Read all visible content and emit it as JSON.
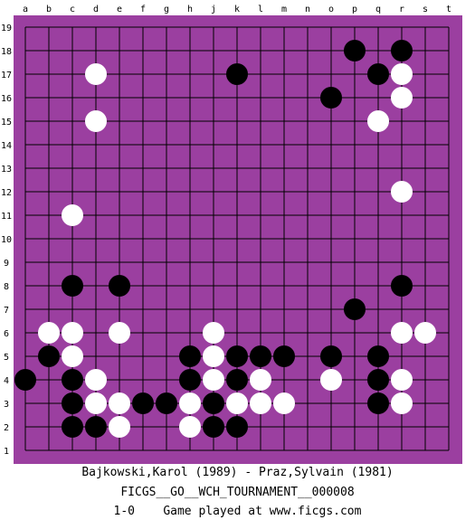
{
  "colors": {
    "board": "#9b3fa0",
    "grid": "#000000",
    "black_stone": "#000000",
    "white_stone": "#ffffff"
  },
  "board": {
    "columns": [
      "a",
      "b",
      "c",
      "d",
      "e",
      "f",
      "g",
      "h",
      "j",
      "k",
      "l",
      "m",
      "n",
      "o",
      "p",
      "q",
      "r",
      "s",
      "t"
    ],
    "rows": [
      "19",
      "18",
      "17",
      "16",
      "15",
      "14",
      "13",
      "12",
      "11",
      "10",
      "9",
      "8",
      "7",
      "6",
      "5",
      "4",
      "3",
      "2",
      "1"
    ],
    "stones": {
      "black": [
        "p18",
        "r18",
        "k17",
        "q17",
        "o16",
        "c8",
        "e8",
        "r8",
        "p7",
        "b5",
        "h5",
        "k5",
        "l5",
        "m5",
        "o5",
        "q5",
        "a4",
        "c4",
        "h4",
        "k4",
        "q4",
        "c3",
        "f3",
        "g3",
        "j3",
        "q3",
        "c2",
        "d2",
        "j2",
        "k2"
      ],
      "white": [
        "d17",
        "r17",
        "r16",
        "d15",
        "q15",
        "r12",
        "c11",
        "b6",
        "c6",
        "e6",
        "j6",
        "r6",
        "s6",
        "c5",
        "j5",
        "d4",
        "j4",
        "l4",
        "o4",
        "r4",
        "d3",
        "e3",
        "h3",
        "k3",
        "l3",
        "m3",
        "r3",
        "e2",
        "h2"
      ]
    }
  },
  "footer": {
    "players": "Bajkowski,Karol (1989) - Praz,Sylvain (1981)",
    "event": "FICGS__GO__WCH_TOURNAMENT__000008",
    "result": "1-0    Game played at www.ficgs.com"
  }
}
